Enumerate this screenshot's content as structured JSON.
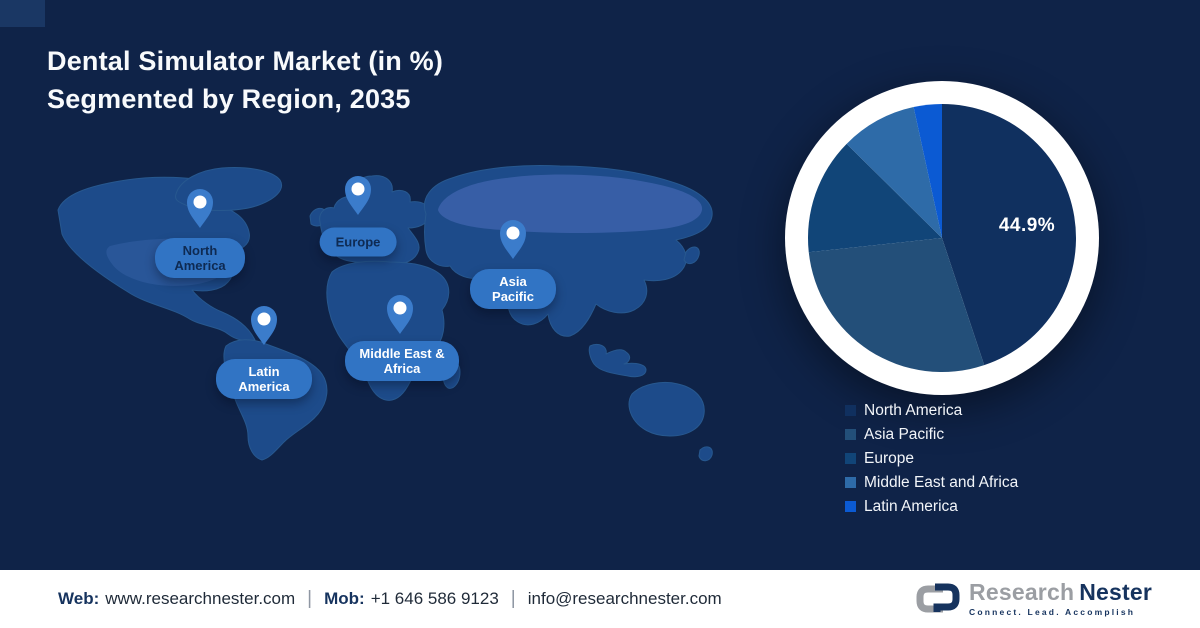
{
  "header": {
    "line1": "Dental Simulator Market (in %)",
    "line2": "Segmented by Region, 2035"
  },
  "map": {
    "regions": [
      {
        "label": "North America"
      },
      {
        "label": "Europe"
      },
      {
        "label": "Asia Pacific"
      },
      {
        "label": "Middle East & Africa"
      },
      {
        "label": "Latin America"
      }
    ]
  },
  "chart_data": {
    "type": "pie",
    "title": "Dental Simulator Market (in %) Segmented by Region, 2035",
    "start_angle_deg": 0,
    "direction": "clockwise",
    "legend_position": "bottom-right",
    "series": [
      {
        "name": "North America",
        "value": 44.9,
        "label": "44.9%",
        "color": "#10305f"
      },
      {
        "name": "Asia Pacific",
        "value": 28.4,
        "color": "#234f79"
      },
      {
        "name": "Europe",
        "value": 14.1,
        "color": "#114578"
      },
      {
        "name": "Middle East and Africa",
        "value": 9.2,
        "color": "#2e6ba8"
      },
      {
        "name": "Latin America",
        "value": 3.4,
        "color": "#0b5ad3"
      }
    ]
  },
  "footer": {
    "web_label": "Web:",
    "web_value": "www.researchnester.com",
    "mob_label": "Mob:",
    "mob_value": "+1 646 586 9123",
    "email": "info@researchnester.com",
    "separator": "|",
    "logo": {
      "part1": "Research",
      "part2": "Nester",
      "tagline": "Connect. Lead. Accomplish"
    }
  },
  "colors": {
    "background": "#0f2348",
    "bubble": "#3174c4",
    "ring": "#ffffff",
    "footer_navy": "#16335e"
  }
}
